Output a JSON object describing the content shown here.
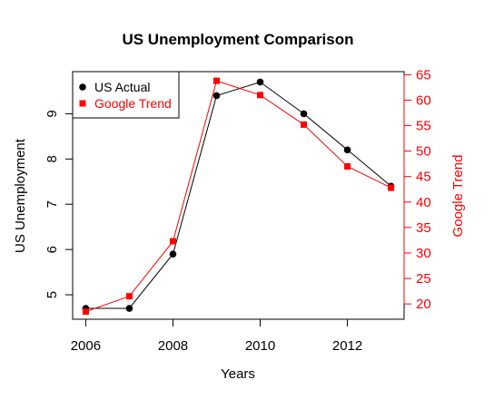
{
  "chart_data": {
    "type": "line",
    "title": "US Unemployment Comparison",
    "xlabel": "Years",
    "ylabel": "US Unemployment",
    "y2label": "Google Trend",
    "xlim": [
      2005.7,
      2013.3
    ],
    "ylim": [
      4.46,
      9.93
    ],
    "y2lim": [
      17.0,
      65.6
    ],
    "xticks": [
      2006,
      2008,
      2010,
      2012
    ],
    "xtick_labels": [
      "2006",
      "2008",
      "2010",
      "2012"
    ],
    "yticks": [
      5,
      6,
      7,
      8,
      9
    ],
    "ytick_labels": [
      "5",
      "6",
      "7",
      "8",
      "9"
    ],
    "y2ticks": [
      20,
      25,
      30,
      35,
      40,
      45,
      50,
      55,
      60,
      65
    ],
    "y2tick_labels": [
      "20",
      "25",
      "30",
      "35",
      "40",
      "45",
      "50",
      "55",
      "60",
      "65"
    ],
    "x": [
      2006,
      2007,
      2008,
      2009,
      2010,
      2011,
      2012,
      2013
    ],
    "series": [
      {
        "name": "US Actual",
        "axis": "left",
        "color": "#000000",
        "marker": "circle",
        "values": [
          4.7,
          4.7,
          5.9,
          9.4,
          9.7,
          9.0,
          8.2,
          7.4
        ]
      },
      {
        "name": "Google Trend",
        "axis": "right",
        "color": "#ff0000",
        "marker": "square",
        "values": [
          18.5,
          21.5,
          32.3,
          63.8,
          61.0,
          55.2,
          47.0,
          42.8
        ]
      }
    ],
    "legend": "top-left",
    "grid": false
  }
}
